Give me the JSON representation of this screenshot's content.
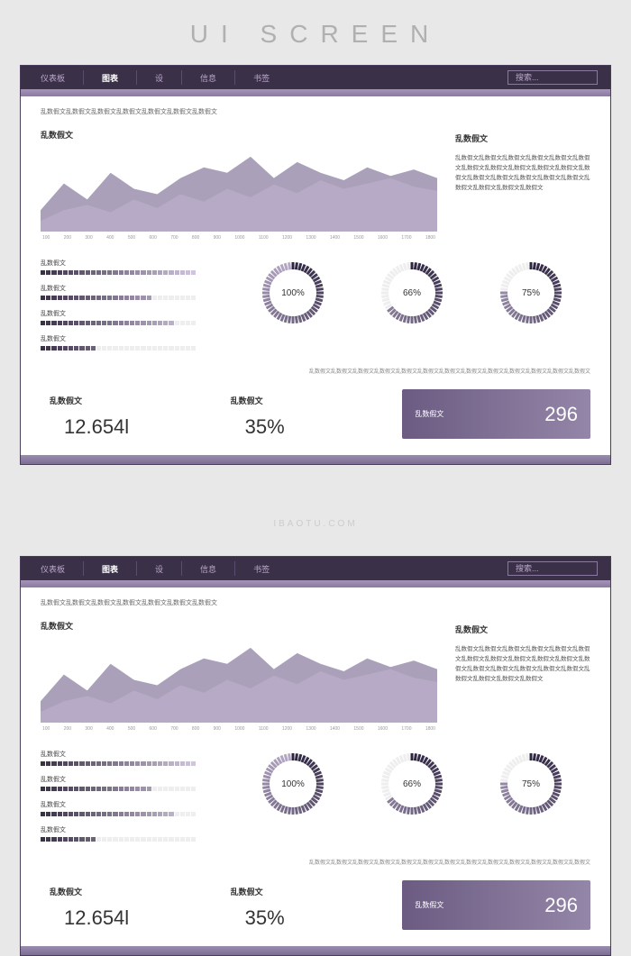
{
  "page_title": "UI SCREEN",
  "watermark": "IBAOTU.COM",
  "nav": {
    "items": [
      "仪表板",
      "图表",
      "设",
      "信息",
      "书签"
    ],
    "active_index": 1,
    "search_placeholder": "搜索..."
  },
  "top_caption": "乱数假文乱数假文乱数假文乱数假文乱数假文乱数假文乱数假文",
  "area_chart": {
    "title": "乱数假文",
    "series_a": [
      20,
      45,
      30,
      55,
      40,
      35,
      50,
      60,
      55,
      70,
      50,
      65,
      55,
      48,
      60,
      52,
      58,
      50
    ],
    "series_b": [
      10,
      20,
      25,
      18,
      30,
      22,
      35,
      28,
      40,
      32,
      44,
      36,
      48,
      40,
      45,
      50,
      42,
      38
    ],
    "x_labels": [
      "100",
      "200",
      "300",
      "400",
      "500",
      "600",
      "700",
      "800",
      "900",
      "1000",
      "1100",
      "1200",
      "1300",
      "1400",
      "1500",
      "1600",
      "1700",
      "1800"
    ],
    "colors": {
      "a": "#7d6d94",
      "b": "#b8abc8"
    }
  },
  "side_panel": {
    "title": "乱数假文",
    "body": "乱数假文乱数假文乱数假文乱数假文乱数假文乱数假文乱数假文乱数假文乱数假文乱数假文乱数假文乱数假文乱数假文乱数假文乱数假文乱数假文乱数假文乱数假文乱数假文乱数假文乱数假文"
  },
  "bars": [
    {
      "label": "乱数假文",
      "filled": 28,
      "total": 28,
      "color_start": "#3a3048",
      "color_end": "#cfc5dc"
    },
    {
      "label": "乱数假文",
      "filled": 20,
      "total": 28,
      "color_start": "#3a3048",
      "color_end": "#cfc5dc"
    },
    {
      "label": "乱数假文",
      "filled": 24,
      "total": 28,
      "color_start": "#3a3048",
      "color_end": "#cfc5dc"
    },
    {
      "label": "乱数假文",
      "filled": 10,
      "total": 28,
      "color_start": "#3a3048",
      "color_end": "#cfc5dc"
    }
  ],
  "gauges": [
    {
      "value": 100,
      "display": "100%",
      "color": "#4a3d5c"
    },
    {
      "value": 66,
      "display": "66%",
      "color": "#4a3d5c"
    },
    {
      "value": 75,
      "display": "75%",
      "color": "#4a3d5c"
    }
  ],
  "gauge_caption": "乱数假文乱数假文乱数假文乱数假文乱数假文乱数假文乱数假文乱数假文乱数假文乱数假文乱数假文乱数假文乱数假文",
  "stats": [
    {
      "label": "乱数假文",
      "value": "12.654l"
    },
    {
      "label": "乱数假文",
      "value": "35%"
    }
  ],
  "stat_card": {
    "label": "乱数假文",
    "value": "296"
  }
}
